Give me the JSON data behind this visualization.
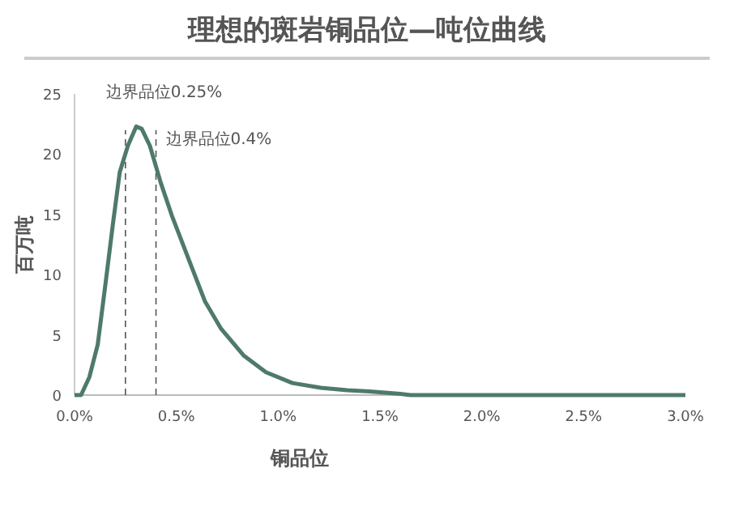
{
  "chart_data": {
    "type": "line",
    "title": "理想的斑岩铜品位—吨位曲线",
    "xlabel": "铜品位",
    "ylabel": "百万吨",
    "x": [
      0,
      0.032,
      0.073,
      0.114,
      0.154,
      0.187,
      0.222,
      0.262,
      0.303,
      0.33,
      0.37,
      0.424,
      0.478,
      0.56,
      0.64,
      0.72,
      0.83,
      0.94,
      1.07,
      1.21,
      1.34,
      1.45,
      1.6,
      1.65,
      3.0
    ],
    "series": [
      {
        "color": "#4e7a6a",
        "values": [
          0,
          0,
          1.5,
          4.2,
          9.5,
          14.0,
          18.5,
          20.7,
          22.3,
          22.1,
          20.7,
          17.6,
          14.9,
          11.3,
          7.8,
          5.5,
          3.3,
          1.9,
          1.0,
          0.6,
          0.4,
          0.3,
          0.1,
          0,
          0
        ]
      }
    ],
    "xlim": [
      0,
      3
    ],
    "ylim": [
      0,
      25
    ],
    "xticks": [
      {
        "value": 0,
        "label": "0.0%"
      },
      {
        "value": 0.5,
        "label": "0.5%"
      },
      {
        "value": 1,
        "label": "1.0%"
      },
      {
        "value": 1.5,
        "label": "1.5%"
      },
      {
        "value": 2,
        "label": "2.0%"
      },
      {
        "value": 2.5,
        "label": "2.5%"
      },
      {
        "value": 3,
        "label": "3.0%"
      }
    ],
    "yticks": [
      0,
      5,
      10,
      15,
      20,
      25
    ],
    "ref_lines": [
      {
        "axis": "x",
        "value": 0.25,
        "label": "边界品位0.25%",
        "line_style": "dashed"
      },
      {
        "axis": "x",
        "value": 0.4,
        "label": "边界品位0.4%",
        "line_style": "dashed"
      }
    ],
    "line_style": "solid"
  }
}
